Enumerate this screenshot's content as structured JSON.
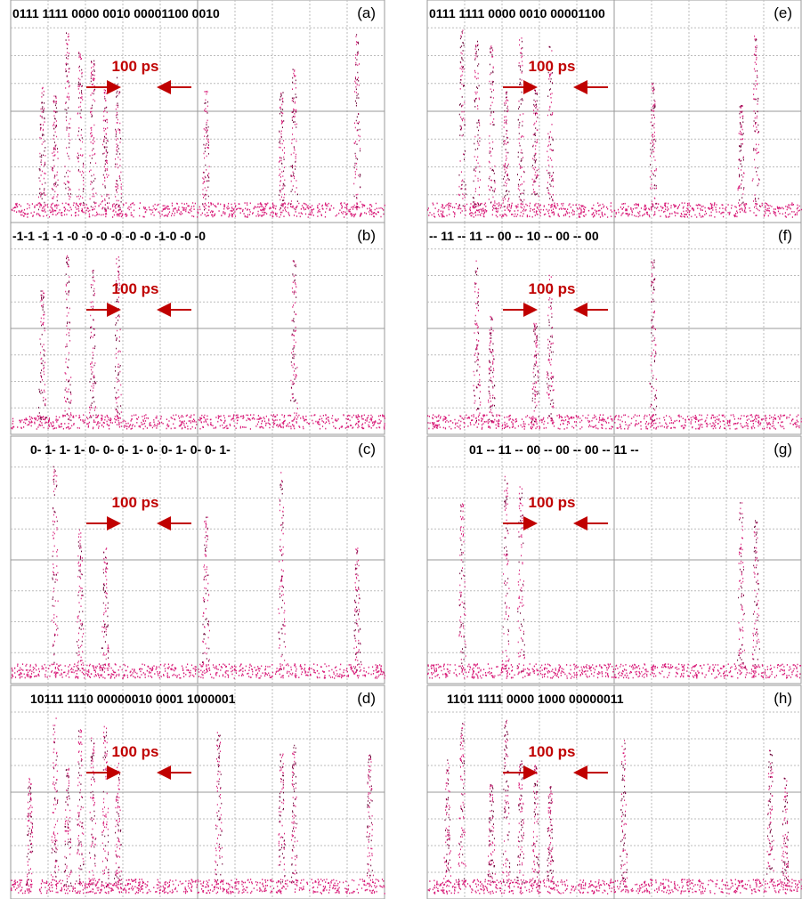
{
  "panels": [
    {
      "label": "(a)",
      "bits": "0111 1111 0000 0010 00001100 0010",
      "annotation": "100 ps"
    },
    {
      "label": "(b)",
      "bits": "-1-1 -1 -1 -0 -0 -0 -0 -0 -0 -1-0 -0 -0",
      "annotation": "100 ps"
    },
    {
      "label": "(c)",
      "bits": "0- 1- 1- 1- 0- 0- 0- 1- 0- 0- 1- 0- 0- 1-",
      "annotation": "100 ps"
    },
    {
      "label": "(d)",
      "bits": "10111 1110 00000010 0001 1000001",
      "annotation": "100 ps"
    },
    {
      "label": "(e)",
      "bits": "0111 1111 0000 0010 00001100",
      "annotation": "100 ps"
    },
    {
      "label": "(f)",
      "bits": "-- 11 -- 11 -- 00 -- 10 -- 00 -- 00",
      "annotation": "100 ps"
    },
    {
      "label": "(g)",
      "bits": "01 -- 11 -- 00 -- 00 -- 00 -- 11 --",
      "annotation": "100 ps"
    },
    {
      "label": "(h)",
      "bits": "1101 1111 0000 1000 00000011",
      "annotation": "100 ps"
    }
  ]
}
